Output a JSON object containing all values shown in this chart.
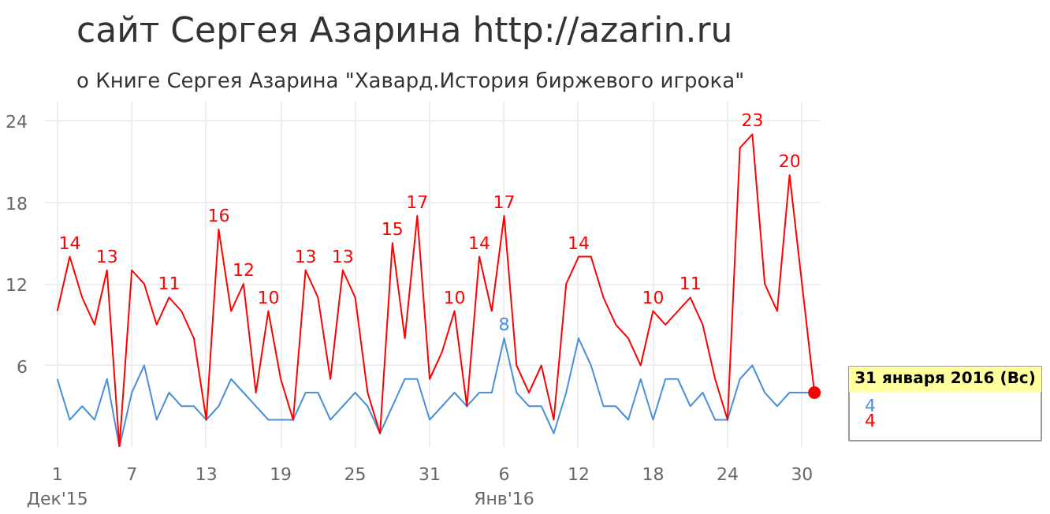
{
  "chart_data": {
    "type": "line",
    "title": "сайт Сергея Азарина http://azarin.ru",
    "subtitle": "о Книге Сергея Азарина \"Хавард.История биржевого игрока\"",
    "x": [
      "2015-12-01",
      "2015-12-02",
      "2015-12-03",
      "2015-12-04",
      "2015-12-05",
      "2015-12-06",
      "2015-12-07",
      "2015-12-08",
      "2015-12-09",
      "2015-12-10",
      "2015-12-11",
      "2015-12-12",
      "2015-12-13",
      "2015-12-14",
      "2015-12-15",
      "2015-12-16",
      "2015-12-17",
      "2015-12-18",
      "2015-12-19",
      "2015-12-20",
      "2015-12-21",
      "2015-12-22",
      "2015-12-23",
      "2015-12-24",
      "2015-12-25",
      "2015-12-26",
      "2015-12-27",
      "2015-12-28",
      "2015-12-29",
      "2015-12-30",
      "2015-12-31",
      "2016-01-01",
      "2016-01-02",
      "2016-01-03",
      "2016-01-04",
      "2016-01-05",
      "2016-01-06",
      "2016-01-07",
      "2016-01-08",
      "2016-01-09",
      "2016-01-10",
      "2016-01-11",
      "2016-01-12",
      "2016-01-13",
      "2016-01-14",
      "2016-01-15",
      "2016-01-16",
      "2016-01-17",
      "2016-01-18",
      "2016-01-19",
      "2016-01-20",
      "2016-01-21",
      "2016-01-22",
      "2016-01-23",
      "2016-01-24",
      "2016-01-25",
      "2016-01-26",
      "2016-01-27",
      "2016-01-28",
      "2016-01-29",
      "2016-01-30",
      "2016-01-31"
    ],
    "series": [
      {
        "color": "#4a90d9",
        "values": [
          5,
          2,
          3,
          2,
          5,
          0,
          4,
          6,
          2,
          4,
          3,
          3,
          2,
          3,
          5,
          4,
          3,
          2,
          2,
          2,
          4,
          4,
          2,
          3,
          4,
          3,
          1,
          3,
          5,
          5,
          2,
          3,
          4,
          3,
          4,
          4,
          8,
          4,
          3,
          3,
          1,
          4,
          8,
          6,
          3,
          3,
          2,
          5,
          2,
          5,
          5,
          3,
          4,
          2,
          2,
          5,
          6,
          4,
          3,
          4,
          4,
          4
        ],
        "value_labels": [
          null,
          null,
          null,
          null,
          null,
          null,
          null,
          null,
          null,
          null,
          null,
          null,
          null,
          null,
          null,
          null,
          null,
          null,
          null,
          null,
          null,
          null,
          null,
          null,
          null,
          null,
          null,
          null,
          null,
          null,
          null,
          null,
          null,
          null,
          null,
          null,
          "8",
          null,
          null,
          null,
          null,
          null,
          null,
          null,
          null,
          null,
          null,
          null,
          null,
          null,
          null,
          null,
          null,
          null,
          null,
          null,
          null,
          null,
          null,
          null,
          null,
          null
        ]
      },
      {
        "color": "#ff0000",
        "values": [
          10,
          14,
          11,
          9,
          13,
          0,
          13,
          12,
          9,
          11,
          10,
          8,
          2,
          16,
          10,
          12,
          4,
          10,
          5,
          2,
          13,
          11,
          5,
          13,
          11,
          4,
          1,
          15,
          8,
          17,
          5,
          7,
          10,
          3,
          14,
          10,
          17,
          6,
          4,
          6,
          2,
          12,
          14,
          14,
          11,
          9,
          8,
          6,
          10,
          9,
          10,
          11,
          9,
          5,
          2,
          22,
          23,
          12,
          10,
          20,
          12,
          4
        ],
        "value_labels": [
          null,
          "14",
          null,
          null,
          "13",
          null,
          null,
          null,
          null,
          "11",
          null,
          null,
          null,
          "16",
          null,
          "12",
          null,
          "10",
          null,
          null,
          "13",
          null,
          null,
          "13",
          null,
          null,
          null,
          "15",
          null,
          "17",
          null,
          null,
          "10",
          null,
          "14",
          null,
          "17",
          null,
          null,
          null,
          null,
          null,
          "14",
          null,
          null,
          null,
          null,
          null,
          "10",
          null,
          null,
          "11",
          null,
          null,
          null,
          null,
          "23",
          null,
          null,
          "20",
          null,
          null
        ]
      }
    ],
    "xlim": [
      "2015-11-30",
      "2016-01-31T12:00"
    ],
    "ylim": [
      0,
      25.4
    ],
    "yticks": [
      6,
      12,
      18,
      24
    ],
    "xticks": [
      {
        "value": "2015-12-01",
        "label": "1\nДек'15"
      },
      {
        "value": "2015-12-07",
        "label": "7"
      },
      {
        "value": "2015-12-13",
        "label": "13"
      },
      {
        "value": "2015-12-19",
        "label": "19"
      },
      {
        "value": "2015-12-25",
        "label": "25"
      },
      {
        "value": "2015-12-31",
        "label": "31"
      },
      {
        "value": "2016-01-06",
        "label": "6\nЯнв'16"
      },
      {
        "value": "2016-01-12",
        "label": "12"
      },
      {
        "value": "2016-01-18",
        "label": "18"
      },
      {
        "value": "2016-01-24",
        "label": "24"
      },
      {
        "value": "2016-01-30",
        "label": "30"
      }
    ],
    "grid": true,
    "annotations": [
      {
        "text": "31 января 2016 (Вс)",
        "x": "2016-01-31",
        "y": 4
      },
      "4",
      "4"
    ]
  }
}
